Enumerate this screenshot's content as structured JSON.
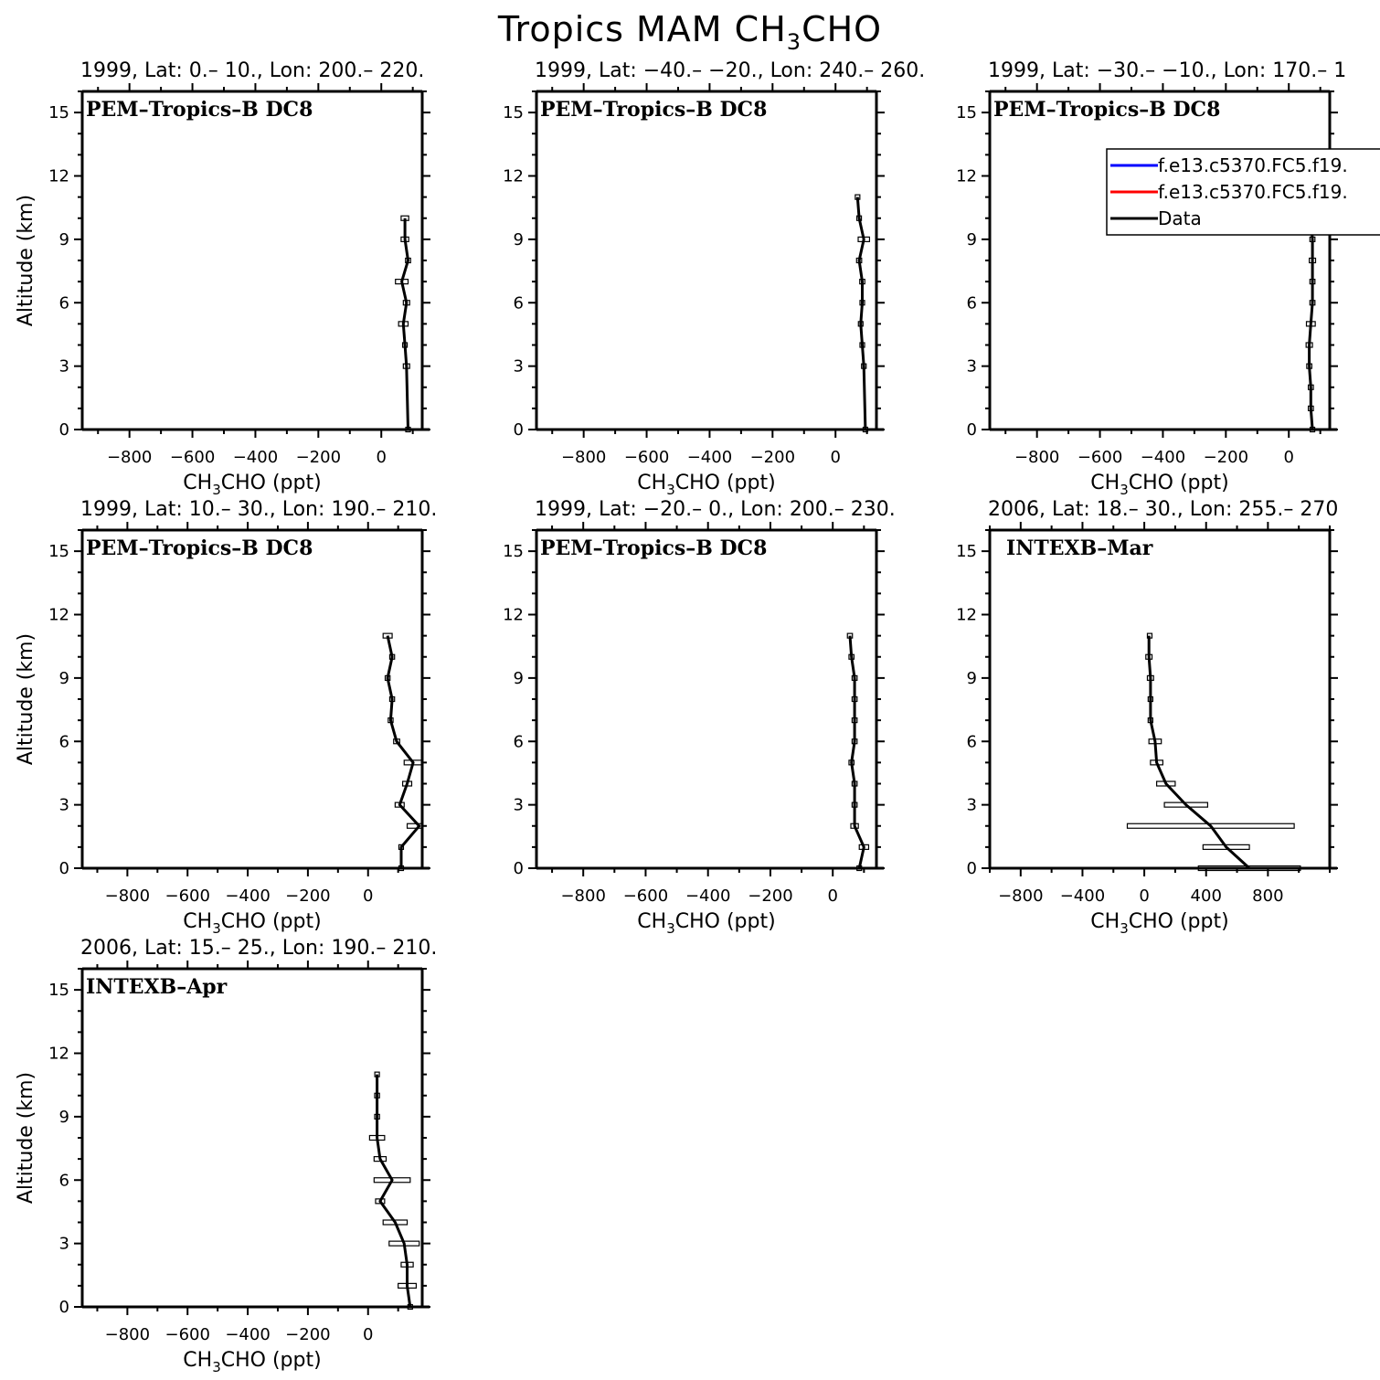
{
  "title": {
    "base": "Tropics MAM CH",
    "sub": "3",
    "tail": "CHO"
  },
  "xlabel": {
    "base": "CH",
    "sub": "3",
    "tail": "CHO (ppt)"
  },
  "ylabel": "Altitude (km)",
  "legend": [
    {
      "label": "f.e13.c5370.FC5.f19.",
      "color": "#0000ff"
    },
    {
      "label": "f.e13.c5370.FC5.f19.",
      "color": "#ff0000"
    },
    {
      "label": "Data",
      "color": "#000000"
    }
  ],
  "chart_data": [
    {
      "type": "line",
      "title": "1999, Lat: 0.– 10., Lon: 200.– 220.",
      "campaign": "PEM–Tropics–B DC8",
      "xlim": [
        -950,
        130
      ],
      "ylim": [
        0,
        16
      ],
      "xticks": [
        -800,
        -600,
        -400,
        -200,
        0
      ],
      "yticks": [
        0,
        3,
        6,
        9,
        12,
        15
      ],
      "series": [
        {
          "name": "Data",
          "color": "#000000",
          "x": [
            85,
            80,
            75,
            70,
            80,
            65,
            85,
            75,
            75
          ],
          "y": [
            0,
            3,
            4,
            5,
            6,
            7,
            8,
            9,
            10
          ],
          "spread": [
            0,
            10,
            0,
            15,
            10,
            20,
            8,
            12,
            12
          ]
        }
      ]
    },
    {
      "type": "line",
      "title": "1999, Lat: −40.– −20., Lon: 240.– 260.",
      "campaign": "PEM–Tropics–B DC8",
      "xlim": [
        -950,
        130
      ],
      "ylim": [
        0,
        16
      ],
      "xticks": [
        -800,
        -600,
        -400,
        -200,
        0
      ],
      "yticks": [
        0,
        3,
        6,
        9,
        12,
        15
      ],
      "series": [
        {
          "name": "Data",
          "color": "#000000",
          "x": [
            95,
            90,
            85,
            80,
            85,
            85,
            75,
            90,
            75,
            70
          ],
          "y": [
            0,
            3,
            4,
            5,
            6,
            7,
            8,
            9,
            10,
            11
          ],
          "spread": [
            0,
            0,
            0,
            0,
            0,
            8,
            8,
            18,
            0,
            0
          ]
        }
      ]
    },
    {
      "type": "line",
      "title": "1999, Lat: −30.– −10., Lon: 170.– 1",
      "campaign": "PEM–Tropics–B DC8",
      "xlim": [
        -950,
        130
      ],
      "ylim": [
        0,
        16
      ],
      "xticks": [
        -800,
        -600,
        -400,
        -200,
        0
      ],
      "yticks": [
        0,
        3,
        6,
        9,
        12,
        15
      ],
      "series": [
        {
          "name": "Data",
          "color": "#000000",
          "x": [
            75,
            70,
            70,
            65,
            65,
            70,
            75,
            75,
            75,
            75,
            70,
            65
          ],
          "y": [
            0,
            1,
            2,
            3,
            4,
            5,
            6,
            7,
            8,
            9,
            10,
            11
          ],
          "spread": [
            0,
            8,
            8,
            8,
            10,
            14,
            8,
            8,
            10,
            8,
            8,
            0
          ]
        }
      ]
    },
    {
      "type": "line",
      "title": "1999, Lat: 10.– 30., Lon: 190.– 210.",
      "campaign": "PEM–Tropics–B DC8",
      "xlim": [
        -950,
        180
      ],
      "ylim": [
        0,
        16
      ],
      "xticks": [
        -800,
        -600,
        -400,
        -200,
        0
      ],
      "yticks": [
        0,
        3,
        6,
        9,
        12,
        15
      ],
      "series": [
        {
          "name": "Data",
          "color": "#000000",
          "x": [
            110,
            110,
            170,
            105,
            130,
            150,
            95,
            75,
            80,
            65,
            80,
            65
          ],
          "y": [
            0,
            1,
            2,
            3,
            4,
            5,
            6,
            7,
            8,
            9,
            10,
            11
          ],
          "spread": [
            0,
            0,
            40,
            15,
            15,
            30,
            10,
            8,
            8,
            8,
            8,
            15
          ]
        }
      ]
    },
    {
      "type": "line",
      "title": "1999, Lat: −20.– 0., Lon: 200.– 230.",
      "campaign": "PEM–Tropics–B DC8",
      "xlim": [
        -950,
        140
      ],
      "ylim": [
        0,
        16
      ],
      "xticks": [
        -800,
        -600,
        -400,
        -200,
        0
      ],
      "yticks": [
        0,
        3,
        6,
        9,
        12,
        15
      ],
      "series": [
        {
          "name": "Data",
          "color": "#000000",
          "x": [
            85,
            100,
            70,
            70,
            70,
            60,
            70,
            70,
            70,
            70,
            60,
            55
          ],
          "y": [
            0,
            1,
            2,
            3,
            4,
            5,
            6,
            7,
            8,
            9,
            10,
            11
          ],
          "spread": [
            0,
            15,
            12,
            8,
            8,
            8,
            8,
            8,
            8,
            8,
            8,
            8
          ]
        }
      ]
    },
    {
      "type": "line",
      "title": "2006, Lat: 18.– 30., Lon: 255.– 270",
      "campaign": "INTEXB–Mar",
      "xlim": [
        -1000,
        1200
      ],
      "ylim": [
        0,
        16
      ],
      "xticks": [
        -800,
        -400,
        0,
        400,
        800
      ],
      "yticks": [
        0,
        3,
        6,
        9,
        12,
        15
      ],
      "series": [
        {
          "name": "Data",
          "color": "#000000",
          "x": [
            680,
            530,
            430,
            270,
            140,
            80,
            70,
            40,
            40,
            40,
            30,
            30
          ],
          "y": [
            0,
            1,
            2,
            3,
            4,
            5,
            6,
            7,
            8,
            9,
            10,
            11
          ],
          "spread": [
            330,
            150,
            540,
            140,
            60,
            40,
            40,
            15,
            15,
            20,
            20,
            10
          ]
        }
      ]
    },
    {
      "type": "line",
      "title": "2006, Lat: 15.– 25., Lon: 190.– 210.",
      "campaign": "INTEXB–Apr",
      "xlim": [
        -950,
        180
      ],
      "ylim": [
        0,
        16
      ],
      "xticks": [
        -800,
        -600,
        -400,
        -200,
        0
      ],
      "yticks": [
        0,
        3,
        6,
        9,
        12,
        15
      ],
      "series": [
        {
          "name": "Data",
          "color": "#000000",
          "x": [
            140,
            130,
            130,
            120,
            90,
            40,
            80,
            40,
            30,
            30,
            30,
            30
          ],
          "y": [
            0,
            1,
            2,
            3,
            4,
            5,
            6,
            7,
            8,
            9,
            10,
            11
          ],
          "spread": [
            0,
            30,
            20,
            50,
            40,
            15,
            60,
            20,
            25,
            8,
            8,
            0
          ]
        }
      ]
    }
  ]
}
